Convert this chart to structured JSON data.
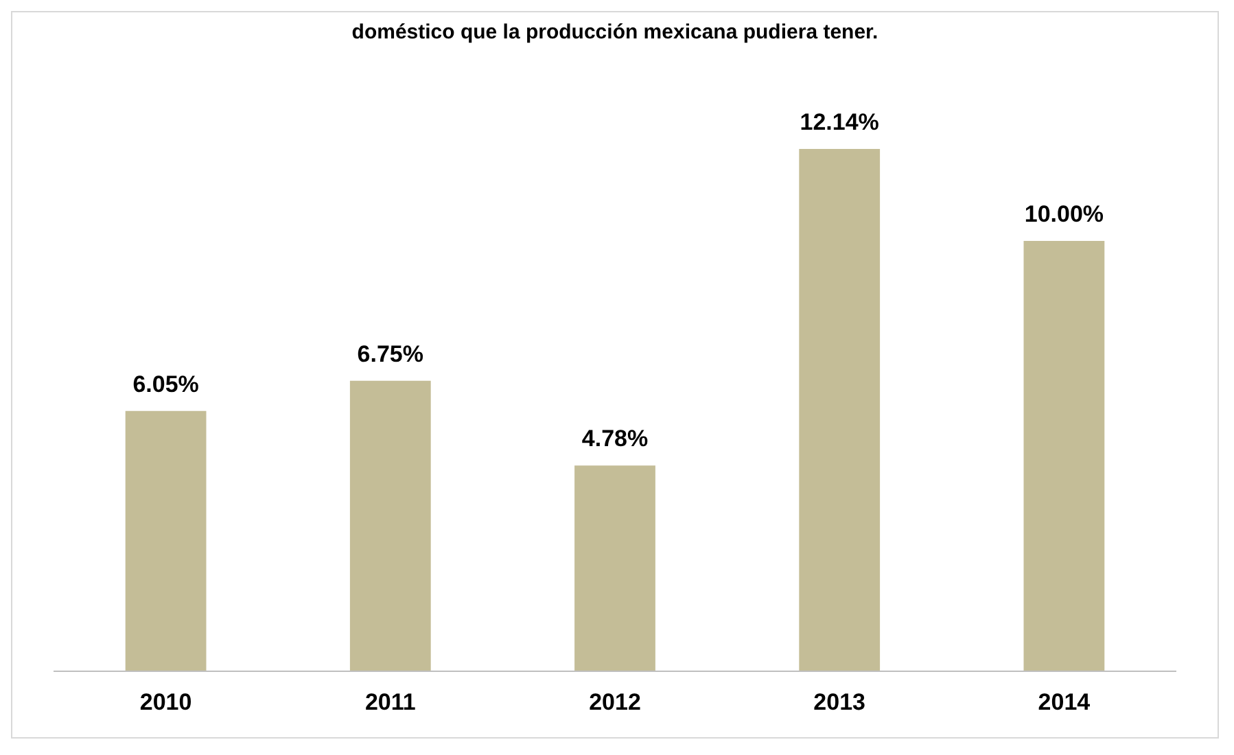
{
  "chart_data": {
    "type": "bar",
    "title": "doméstico que la producción mexicana pudiera tener.",
    "categories": [
      "2010",
      "2011",
      "2012",
      "2013",
      "2014"
    ],
    "values": [
      6.05,
      6.75,
      4.78,
      12.14,
      10.0
    ],
    "value_labels": [
      "6.05%",
      "6.75%",
      "4.78%",
      "12.14%",
      "10.00%"
    ],
    "color": "#c4bd97"
  }
}
